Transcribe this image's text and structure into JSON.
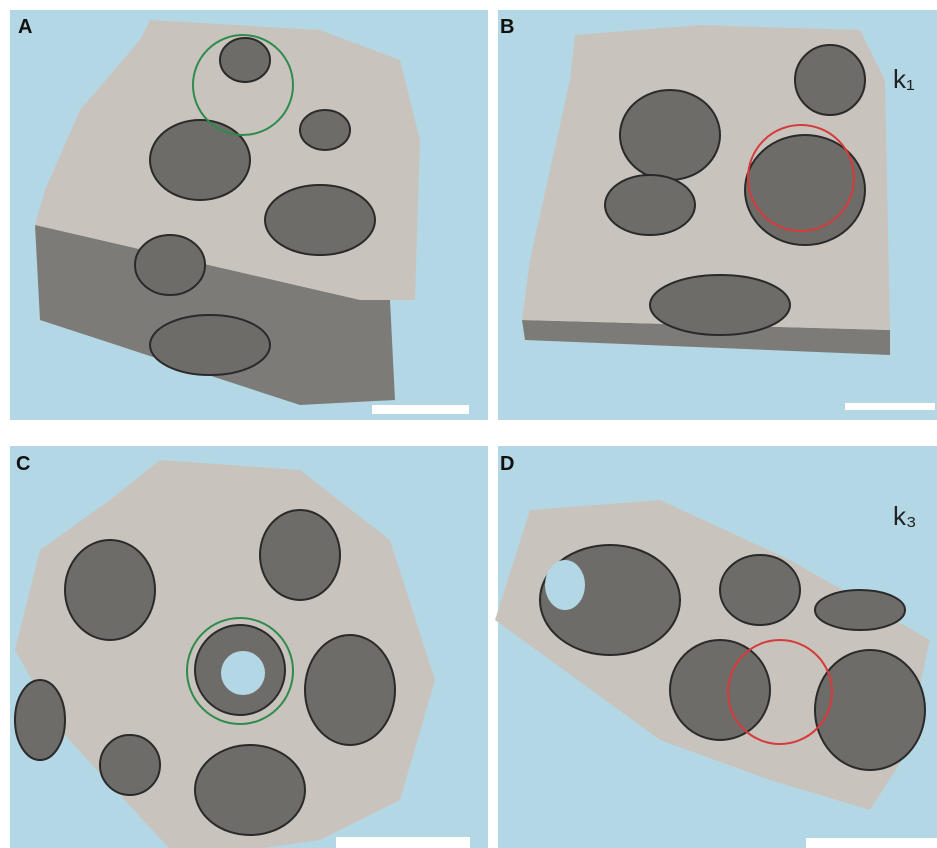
{
  "panels": [
    {
      "label": "A"
    },
    {
      "label": "B"
    },
    {
      "label": "C"
    },
    {
      "label": "D"
    }
  ],
  "row_labels": [
    "k₁",
    "k₃"
  ]
}
